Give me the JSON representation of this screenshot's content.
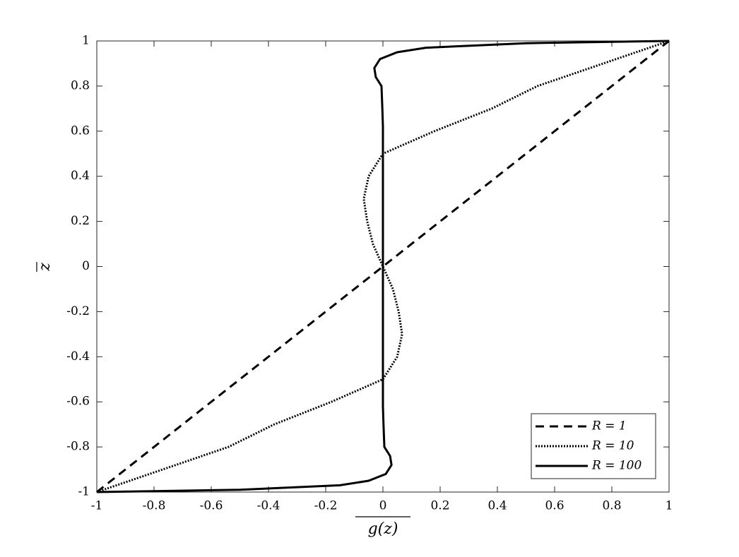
{
  "chart_data": {
    "type": "line",
    "xlabel": "g(z)",
    "ylabel": "z",
    "xlim": [
      -1,
      1
    ],
    "ylim": [
      -1,
      1
    ],
    "xticks": [
      -1,
      -0.8,
      -0.6,
      -0.4,
      -0.2,
      0,
      0.2,
      0.4,
      0.6,
      0.8,
      1
    ],
    "yticks": [
      -1,
      -0.8,
      -0.6,
      -0.4,
      -0.2,
      0,
      0.2,
      0.4,
      0.6,
      0.8,
      1
    ],
    "legend": "lower right",
    "series": [
      {
        "name": "R = 1",
        "color": "#000000",
        "dash": "dashed",
        "x": [
          -1,
          -0.5,
          0,
          0.5,
          1
        ],
        "values": [
          -1,
          -0.5,
          0,
          0.5,
          1
        ]
      },
      {
        "name": "R = 10",
        "color": "#000000",
        "dash": "dotted",
        "x": [
          -1,
          -0.77,
          -0.54,
          -0.38,
          -0.18,
          0,
          0.05,
          0.067,
          0.055,
          0.035,
          0,
          -0.035,
          -0.055,
          -0.067,
          -0.05,
          0,
          0.18,
          0.38,
          0.54,
          0.77,
          1
        ],
        "values": [
          -1,
          -0.9,
          -0.8,
          -0.7,
          -0.6,
          -0.5,
          -0.4,
          -0.3,
          -0.2,
          -0.1,
          0,
          0.1,
          0.2,
          0.3,
          0.4,
          0.5,
          0.6,
          0.7,
          0.8,
          0.9,
          1
        ]
      },
      {
        "name": "R = 100",
        "color": "#000000",
        "dash": "solid",
        "x": [
          -1,
          -0.5,
          -0.15,
          -0.05,
          0.01,
          0.03,
          0.025,
          0.005,
          0.002,
          0,
          0,
          -0.002,
          -0.005,
          -0.025,
          -0.03,
          -0.01,
          0.05,
          0.15,
          0.5,
          1
        ],
        "values": [
          -1,
          -0.99,
          -0.97,
          -0.95,
          -0.92,
          -0.88,
          -0.84,
          -0.8,
          -0.7,
          -0.62,
          0.62,
          0.7,
          0.8,
          0.84,
          0.88,
          0.92,
          0.95,
          0.97,
          0.99,
          1
        ]
      }
    ]
  }
}
